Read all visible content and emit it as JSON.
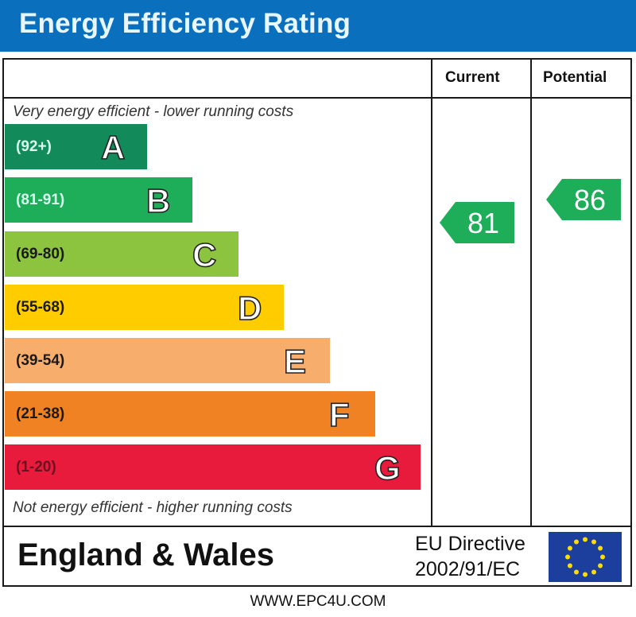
{
  "header": {
    "title": "Energy Efficiency Rating"
  },
  "columns": {
    "current": "Current",
    "potential": "Potential"
  },
  "captions": {
    "top": "Very energy efficient - lower running costs",
    "bottom": "Not energy efficient - higher running costs"
  },
  "chart_data": {
    "type": "bar",
    "title": "Energy Efficiency Rating",
    "categories": [
      "A",
      "B",
      "C",
      "D",
      "E",
      "F",
      "G"
    ],
    "ranges": [
      "(92+)",
      "(81-91)",
      "(69-80)",
      "(55-68)",
      "(39-54)",
      "(21-38)",
      "(1-20)"
    ],
    "colors": [
      "#138a5a",
      "#1eae5a",
      "#8cc43f",
      "#ffcc00",
      "#f7ad6c",
      "#f08223",
      "#e81b3c"
    ],
    "range_text_colors": [
      "#d9fff0",
      "#d9fff0",
      "#1a1a1a",
      "#1a1a1a",
      "#1a1a1a",
      "#1a1a1a",
      "#6b1020"
    ],
    "current": {
      "label": "Current",
      "value": 81,
      "band": "B",
      "color": "#1eae5a"
    },
    "potential": {
      "label": "Potential",
      "value": 86,
      "band": "B",
      "color": "#1eae5a"
    }
  },
  "footer": {
    "region": "England & Wales",
    "directive_line1": "EU Directive",
    "directive_line2": "2002/91/EC",
    "flag_icon": "eu-flag-icon",
    "website": "WWW.EPC4U.COM"
  }
}
